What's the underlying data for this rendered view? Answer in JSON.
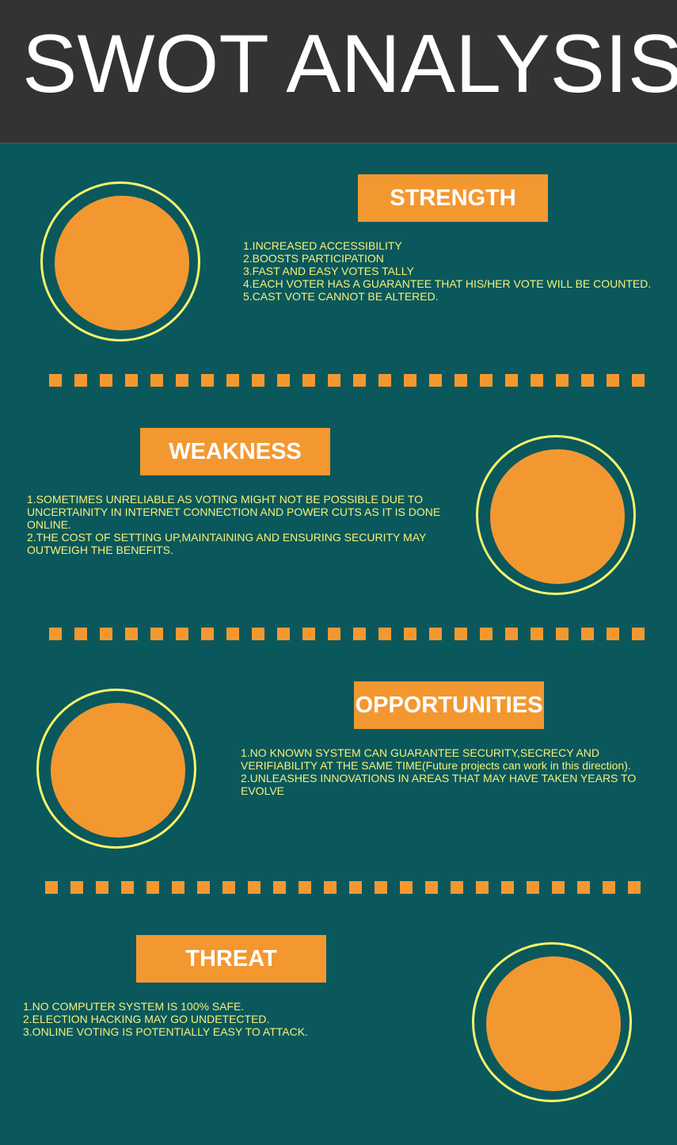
{
  "title": "SWOT ANALYSIS",
  "colors": {
    "background": "#0a585c",
    "header": "#333333",
    "accent": "#f39831",
    "ring": "#f9f56b",
    "text": "#f7f07a"
  },
  "sections": [
    {
      "heading": "STRENGTH",
      "items": [
        "1.INCREASED ACCESSIBILITY",
        "2.BOOSTS  PARTICIPATION",
        "3.FAST AND EASY VOTES TALLY",
        "4.EACH VOTER HAS A GUARANTEE THAT HIS/HER VOTE WILL BE COUNTED.",
        "5.CAST VOTE CANNOT BE ALTERED."
      ]
    },
    {
      "heading": "WEAKNESS",
      "items": [
        "1.SOMETIMES UNRELIABLE AS VOTING MIGHT NOT BE POSSIBLE DUE TO UNCERTAINITY IN INTERNET CONNECTION AND POWER CUTS AS IT IS DONE ONLINE.",
        "2.THE COST OF SETTING UP,MAINTAINING AND ENSURING SECURITY MAY OUTWEIGH THE BENEFITS."
      ]
    },
    {
      "heading": "OPPORTUNITIES",
      "items": [
        "1.NO KNOWN SYSTEM CAN GUARANTEE SECURITY,SECRECY AND VERIFIABILITY AT THE SAME TIME(Future projects can work in this direction).",
        "2.UNLEASHES INNOVATIONS IN AREAS THAT MAY HAVE TAKEN YEARS TO EVOLVE"
      ]
    },
    {
      "heading": "THREAT",
      "items": [
        "1.NO COMPUTER SYSTEM IS 100% SAFE.",
        "2.ELECTION HACKING MAY GO UNDETECTED.",
        "3.ONLINE VOTING IS POTENTIALLY EASY TO ATTACK."
      ]
    }
  ]
}
